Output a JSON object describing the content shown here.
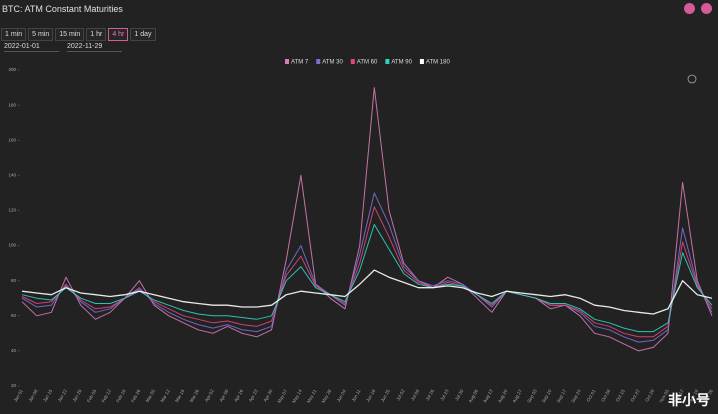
{
  "ui": {
    "title": "BTC: ATM Constant Maturities",
    "intervals": [
      "1 min",
      "5 min",
      "15 min",
      "1 hr",
      "4 hr",
      "1 day"
    ],
    "active_interval": 4,
    "start_date": "2022-01-01",
    "end_date": "2022-11-29",
    "watermark": "非小号"
  },
  "chart_data": {
    "type": "line",
    "categories": [
      "Jan 01",
      "Jan 08",
      "Jan 15",
      "Jan 22",
      "Jan 29",
      "Feb 05",
      "Feb 12",
      "Feb 19",
      "Feb 26",
      "Mar 05",
      "Mar 12",
      "Mar 19",
      "Mar 26",
      "Apr 02",
      "Apr 09",
      "Apr 16",
      "Apr 23",
      "Apr 30",
      "May 07",
      "May 14",
      "May 21",
      "May 28",
      "Jun 04",
      "Jun 11",
      "Jun 18",
      "Jun 25",
      "Jul 02",
      "Jul 09",
      "Jul 16",
      "Jul 23",
      "Jul 30",
      "Aug 06",
      "Aug 13",
      "Aug 20",
      "Aug 27",
      "Sep 03",
      "Sep 10",
      "Sep 17",
      "Sep 24",
      "Oct 01",
      "Oct 08",
      "Oct 15",
      "Oct 22",
      "Oct 29",
      "Nov 05",
      "Nov 12",
      "Nov 19",
      "Nov 26"
    ],
    "series": [
      {
        "name": "ATM 7",
        "color": "#d97bb6",
        "values": [
          68,
          60,
          62,
          82,
          66,
          58,
          62,
          70,
          80,
          66,
          60,
          56,
          52,
          50,
          54,
          50,
          48,
          52,
          92,
          140,
          78,
          70,
          64,
          100,
          190,
          120,
          90,
          80,
          76,
          82,
          78,
          70,
          62,
          74,
          72,
          70,
          64,
          66,
          60,
          50,
          48,
          44,
          40,
          42,
          50,
          136,
          80,
          60
        ]
      },
      {
        "name": "ATM 30",
        "color": "#7b6fd6",
        "values": [
          70,
          65,
          66,
          78,
          68,
          62,
          64,
          70,
          76,
          67,
          62,
          58,
          55,
          53,
          55,
          52,
          51,
          54,
          86,
          100,
          78,
          72,
          66,
          95,
          130,
          112,
          88,
          80,
          77,
          80,
          78,
          72,
          65,
          74,
          72,
          70,
          66,
          66,
          62,
          54,
          52,
          48,
          45,
          46,
          52,
          110,
          78,
          62
        ]
      },
      {
        "name": "ATM 60",
        "color": "#e0457a",
        "values": [
          71,
          67,
          68,
          77,
          69,
          64,
          65,
          70,
          75,
          68,
          64,
          60,
          58,
          56,
          57,
          55,
          54,
          57,
          83,
          94,
          77,
          72,
          67,
          90,
          122,
          105,
          86,
          79,
          76,
          79,
          77,
          72,
          66,
          74,
          72,
          70,
          66,
          66,
          63,
          56,
          54,
          50,
          48,
          48,
          54,
          102,
          77,
          64
        ]
      },
      {
        "name": "ATM 90",
        "color": "#2fd3c4",
        "values": [
          72,
          70,
          69,
          76,
          70,
          67,
          67,
          70,
          74,
          69,
          66,
          63,
          61,
          60,
          60,
          59,
          58,
          60,
          80,
          88,
          76,
          72,
          68,
          86,
          112,
          98,
          84,
          78,
          76,
          78,
          77,
          72,
          67,
          74,
          72,
          70,
          67,
          67,
          64,
          58,
          56,
          53,
          51,
          51,
          56,
          96,
          76,
          66
        ]
      },
      {
        "name": "ATM 180",
        "color": "#ffffff",
        "values": [
          74,
          73,
          72,
          76,
          73,
          72,
          71,
          72,
          74,
          72,
          70,
          68,
          67,
          66,
          66,
          65,
          65,
          66,
          72,
          74,
          73,
          72,
          71,
          78,
          86,
          82,
          79,
          76,
          76,
          77,
          76,
          73,
          71,
          74,
          73,
          72,
          71,
          72,
          70,
          66,
          65,
          63,
          62,
          61,
          64,
          80,
          72,
          70
        ]
      }
    ],
    "ylim": [
      20,
      200
    ],
    "yticks": [
      20,
      40,
      60,
      80,
      100,
      120,
      140,
      160,
      180,
      200
    ]
  }
}
